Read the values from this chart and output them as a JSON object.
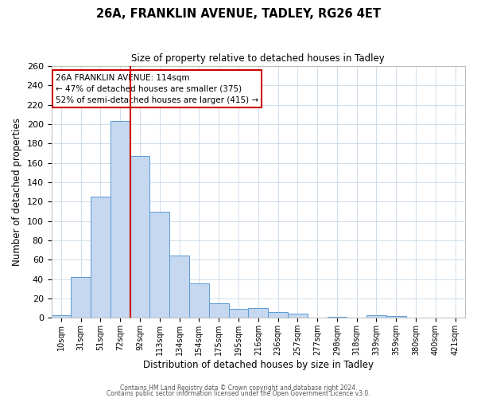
{
  "title": "26A, FRANKLIN AVENUE, TADLEY, RG26 4ET",
  "subtitle": "Size of property relative to detached houses in Tadley",
  "xlabel": "Distribution of detached houses by size in Tadley",
  "ylabel": "Number of detached properties",
  "bin_labels": [
    "10sqm",
    "31sqm",
    "51sqm",
    "72sqm",
    "92sqm",
    "113sqm",
    "134sqm",
    "154sqm",
    "175sqm",
    "195sqm",
    "216sqm",
    "236sqm",
    "257sqm",
    "277sqm",
    "298sqm",
    "318sqm",
    "339sqm",
    "359sqm",
    "380sqm",
    "400sqm",
    "421sqm"
  ],
  "bar_heights": [
    3,
    42,
    125,
    203,
    167,
    110,
    64,
    36,
    15,
    9,
    10,
    6,
    4,
    0,
    1,
    0,
    3,
    2,
    0,
    0,
    0
  ],
  "bar_color": "#c5d8f0",
  "bar_edge_color": "#5b9bd5",
  "vline_x_index": 4,
  "vline_color": "#cc0000",
  "ylim": [
    0,
    260
  ],
  "yticks": [
    0,
    20,
    40,
    60,
    80,
    100,
    120,
    140,
    160,
    180,
    200,
    220,
    240,
    260
  ],
  "annotation_title": "26A FRANKLIN AVENUE: 114sqm",
  "annotation_line1": "← 47% of detached houses are smaller (375)",
  "annotation_line2": "52% of semi-detached houses are larger (415) →",
  "annotation_box_color": "#ffffff",
  "annotation_box_edge": "#cc0000",
  "footer1": "Contains HM Land Registry data © Crown copyright and database right 2024.",
  "footer2": "Contains public sector information licensed under the Open Government Licence v3.0."
}
